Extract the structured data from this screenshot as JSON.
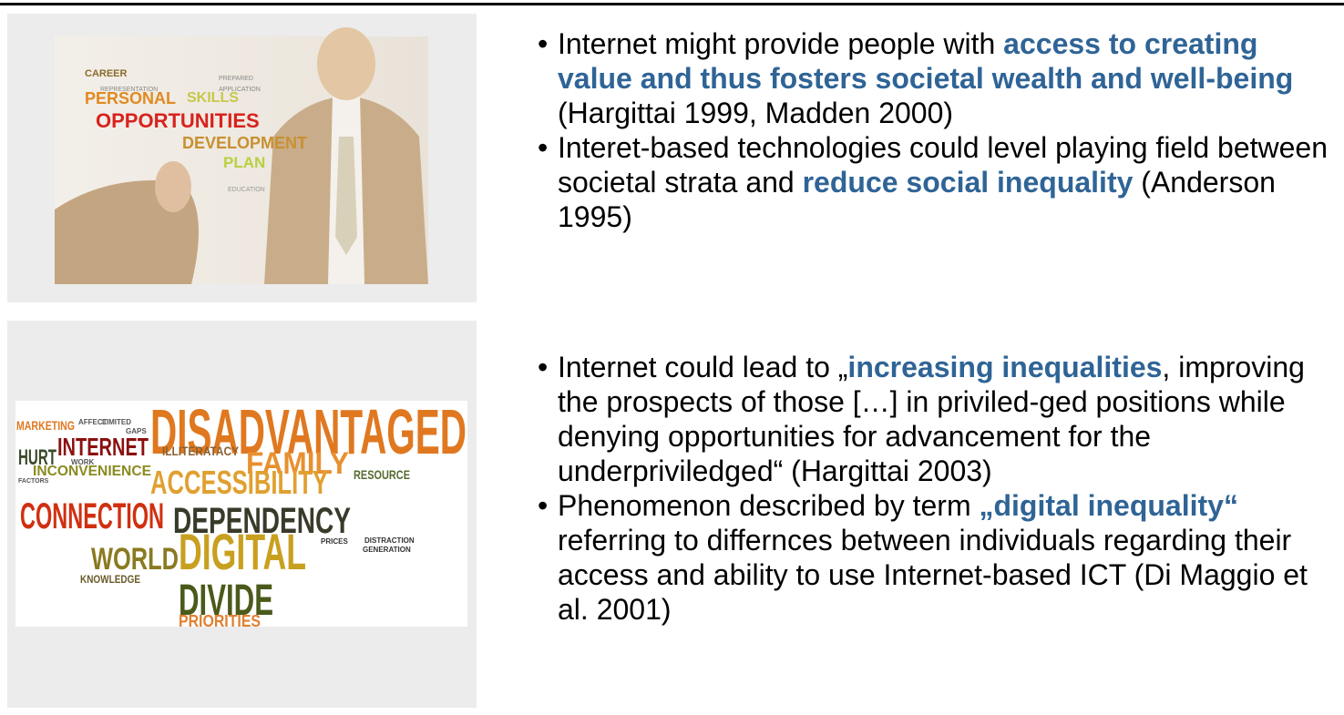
{
  "images": [
    {
      "words": [
        "CAREER",
        "PERSONAL",
        "SKILLS",
        "OPPORTUNITIES",
        "DEVELOPMENT",
        "PLAN",
        "EDUCATION",
        "APPLICATION",
        "PREPARED",
        "REPRESENTATION"
      ]
    },
    {
      "words": [
        "DISADVANTAGED",
        "MARKETING",
        "AFFECT",
        "LIMITED",
        "GAPS",
        "HURT",
        "INTERNET",
        "ILLITERATACY",
        "FAMILY",
        "INCONVENIENCE",
        "ACCESSIBILITY",
        "RESOURCE",
        "CONNECTION",
        "DEPENDENCY",
        "WORLD",
        "DIGITAL",
        "KNOWLEDGE",
        "DIVIDE",
        "PRIORITIES",
        "DISTRACTION",
        "GENERATION",
        "PRICES",
        "FACTORS",
        "WORK"
      ]
    }
  ],
  "groups": [
    {
      "bullets": [
        {
          "runs": [
            {
              "text": "Internet might provide people with ",
              "emphasis": false
            },
            {
              "text": "access to creating value and thus fosters societal wealth and well-being",
              "emphasis": true
            },
            {
              "text": " (Hargittai 1999, Madden 2000)",
              "emphasis": false
            }
          ]
        },
        {
          "runs": [
            {
              "text": "Interet-based technologies could level playing field between societal strata and ",
              "emphasis": false
            },
            {
              "text": "reduce social inequality",
              "emphasis": true
            },
            {
              "text": " (Anderson 1995)",
              "emphasis": false
            }
          ]
        }
      ]
    },
    {
      "bullets": [
        {
          "runs": [
            {
              "text": "Internet could lead to „",
              "emphasis": false
            },
            {
              "text": "increasing inequalities",
              "emphasis": true
            },
            {
              "text": ", improving the prospects of those […] in priviled-ged positions while denying opportunities for advancement for the underpriviledged“ (Hargittai 2003)",
              "emphasis": false
            }
          ]
        },
        {
          "runs": [
            {
              "text": "Phenomenon described by term ",
              "emphasis": false
            },
            {
              "text": "„digital inequality“",
              "emphasis": true
            },
            {
              "text": " referring to differnces between individuals regarding their access and ability to use Internet-based ICT (Di Maggio et al. 2001)",
              "emphasis": false
            }
          ]
        }
      ]
    }
  ]
}
